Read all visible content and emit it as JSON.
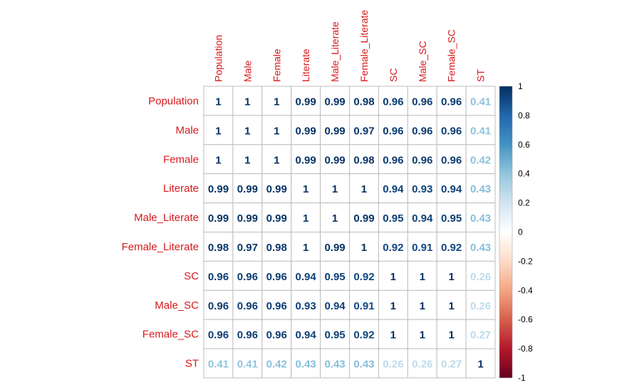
{
  "chart_data": {
    "type": "heatmap",
    "title": "",
    "labels": [
      "Population",
      "Male",
      "Female",
      "Literate",
      "Male_Literate",
      "Female_Literate",
      "SC",
      "Male_SC",
      "Female_SC",
      "ST"
    ],
    "matrix": [
      [
        "1",
        "1",
        "1",
        "0.99",
        "0.99",
        "0.98",
        "0.96",
        "0.96",
        "0.96",
        "0.41"
      ],
      [
        "1",
        "1",
        "1",
        "0.99",
        "0.99",
        "0.97",
        "0.96",
        "0.96",
        "0.96",
        "0.41"
      ],
      [
        "1",
        "1",
        "1",
        "0.99",
        "0.99",
        "0.98",
        "0.96",
        "0.96",
        "0.96",
        "0.42"
      ],
      [
        "0.99",
        "0.99",
        "0.99",
        "1",
        "1",
        "1",
        "0.94",
        "0.93",
        "0.94",
        "0.43"
      ],
      [
        "0.99",
        "0.99",
        "0.99",
        "1",
        "1",
        "0.99",
        "0.95",
        "0.94",
        "0.95",
        "0.43"
      ],
      [
        "0.98",
        "0.97",
        "0.98",
        "1",
        "0.99",
        "1",
        "0.92",
        "0.91",
        "0.92",
        "0.43"
      ],
      [
        "0.96",
        "0.96",
        "0.96",
        "0.94",
        "0.95",
        "0.92",
        "1",
        "1",
        "1",
        "0.26"
      ],
      [
        "0.96",
        "0.96",
        "0.96",
        "0.93",
        "0.94",
        "0.91",
        "1",
        "1",
        "1",
        "0.26"
      ],
      [
        "0.96",
        "0.96",
        "0.96",
        "0.94",
        "0.95",
        "0.92",
        "1",
        "1",
        "1",
        "0.27"
      ],
      [
        "0.41",
        "0.41",
        "0.42",
        "0.43",
        "0.43",
        "0.43",
        "0.26",
        "0.26",
        "0.27",
        "1"
      ]
    ],
    "colorbar": {
      "ticks": [
        "1",
        "0.8",
        "0.6",
        "0.4",
        "0.2",
        "0",
        "-0.2",
        "-0.4",
        "-0.6",
        "-0.8",
        "-1"
      ],
      "range": [
        -1,
        1
      ]
    },
    "colors": {
      "label": "#d7191c",
      "grid": "#bdbdbd",
      "palette": [
        "#67001f",
        "#b2182b",
        "#d6604d",
        "#f4a582",
        "#fddbc7",
        "#ffffff",
        "#d1e5f0",
        "#92c5de",
        "#4393c3",
        "#2166ac",
        "#053061"
      ]
    }
  }
}
